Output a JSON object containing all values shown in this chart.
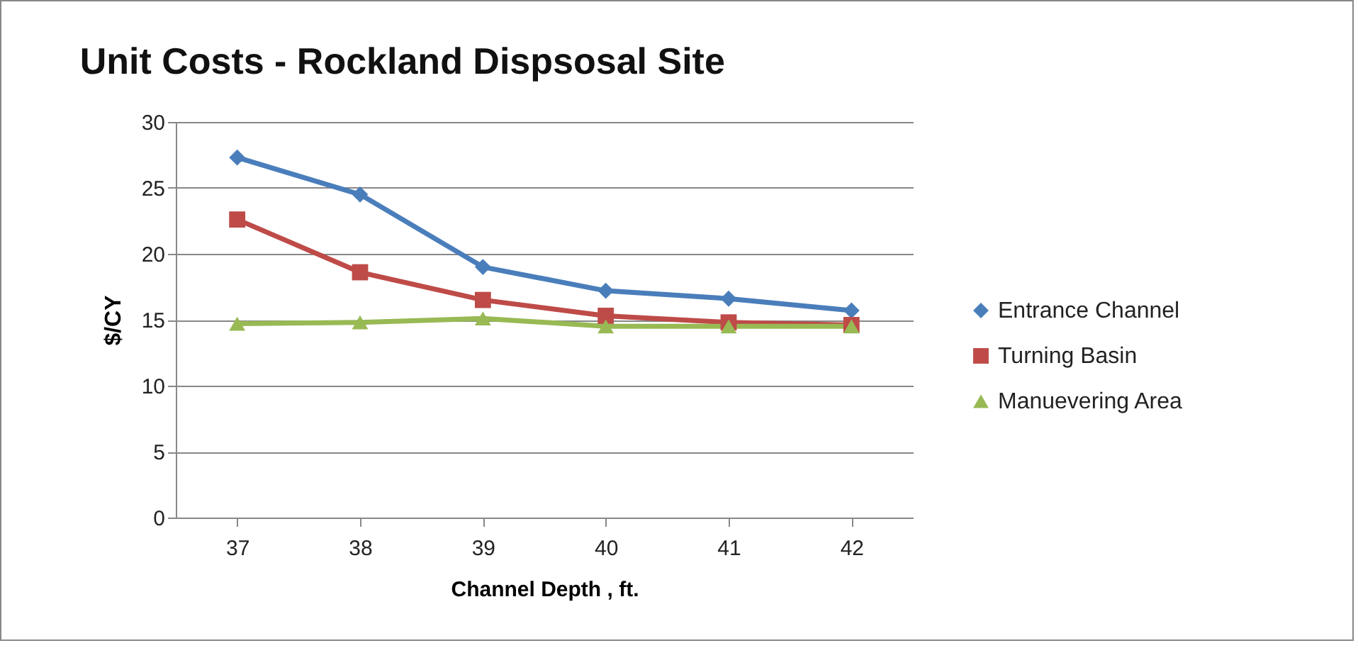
{
  "chart_data": {
    "type": "line",
    "title": "Unit Costs - Rockland  Dispsosal  Site",
    "xlabel": "Channel Depth , ft.",
    "ylabel": "$/CY",
    "categories": [
      "37",
      "38",
      "39",
      "40",
      "41",
      "42"
    ],
    "series": [
      {
        "name": "Entrance Channel",
        "color": "#4a7ebb",
        "marker": "diamond",
        "values": [
          27.3,
          24.5,
          19.0,
          17.2,
          16.6,
          15.7
        ]
      },
      {
        "name": "Turning Basin",
        "color": "#be4b48",
        "marker": "square",
        "values": [
          22.6,
          18.6,
          16.5,
          15.3,
          14.8,
          14.6
        ]
      },
      {
        "name": "Manuevering Area",
        "color": "#98b954",
        "marker": "triangle",
        "values": [
          14.7,
          14.8,
          15.1,
          14.5,
          14.5,
          14.5
        ]
      }
    ],
    "ylim": [
      0,
      30
    ],
    "yticks": [
      0,
      5,
      10,
      15,
      20,
      25,
      30
    ],
    "grid": "y",
    "legend": "right",
    "line_style": "solid"
  }
}
